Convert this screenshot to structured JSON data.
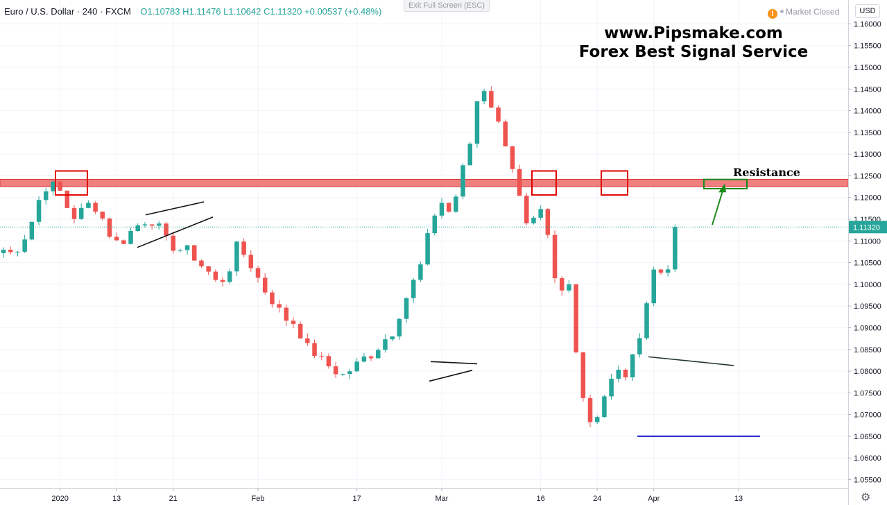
{
  "header": {
    "symbol": "Euro / U.S. Dollar · 240 · FXCM",
    "ohlc": "O1.10783 H1.11476 L1.10642 C1.11320 +0.00537 (+0.48%)"
  },
  "toolbar": {
    "exit_fullscreen_label": "Exit Full Screen (ESC)"
  },
  "status": {
    "warning_icon": "!",
    "label": "Market Closed"
  },
  "currency_button": "USD",
  "watermark": {
    "line1": "www.Pipsmake.com",
    "line2": "Forex Best Signal Service"
  },
  "annotations": {
    "resistance_label": "Resistance"
  },
  "colors": {
    "up": "#26a69a",
    "down": "#ef5350",
    "resistance_fill": "#f08080",
    "marker_red": "#e00000",
    "marker_green": "#1b8a1b",
    "support_line": "#1a1acc",
    "last_price": "#26a69a",
    "grid": "#f0f3fa"
  },
  "chart_data": {
    "type": "candlestick",
    "symbol": "EUR/USD",
    "interval": "240",
    "source": "FXCM",
    "y_range": [
      1.053,
      1.1655
    ],
    "y_ticks": [
      "1.16000",
      "1.15500",
      "1.15000",
      "1.14500",
      "1.14000",
      "1.13500",
      "1.13000",
      "1.12500",
      "1.12000",
      "1.11500",
      "1.11000",
      "1.10500",
      "1.10000",
      "1.09500",
      "1.09000",
      "1.08500",
      "1.08000",
      "1.07500",
      "1.07000",
      "1.06500",
      "1.06000",
      "1.05500"
    ],
    "x_ticks": [
      "2020",
      "13",
      "21",
      "Feb",
      "17",
      "Mar",
      "16",
      "24",
      "Apr",
      "13"
    ],
    "x_tick_bar_index": [
      8,
      16,
      24,
      36,
      50,
      62,
      76,
      84,
      92,
      104
    ],
    "last_price": "1.11320",
    "resistance_zone": [
      1.1225,
      1.1242
    ],
    "support_level": 1.065,
    "price_path": [
      1.108,
      1.107,
      1.11,
      1.115,
      1.122,
      1.123,
      1.121,
      1.115,
      1.117,
      1.119,
      1.116,
      1.111,
      1.109,
      1.112,
      1.114,
      1.115,
      1.113,
      1.109,
      1.108,
      1.108,
      1.105,
      1.103,
      1.1,
      1.102,
      1.109,
      1.106,
      1.102,
      1.098,
      1.095,
      1.092,
      1.091,
      1.086,
      1.084,
      1.082,
      1.08,
      1.079,
      1.081,
      1.083,
      1.084,
      1.087,
      1.089,
      1.095,
      1.1,
      1.105,
      1.115,
      1.119,
      1.116,
      1.125,
      1.133,
      1.147,
      1.142,
      1.136,
      1.13,
      1.12,
      1.111,
      1.118,
      1.11,
      1.096,
      1.102,
      1.082,
      1.068,
      1.07,
      1.076,
      1.08,
      1.079,
      1.085,
      1.095,
      1.105,
      1.101,
      1.1132
    ]
  }
}
